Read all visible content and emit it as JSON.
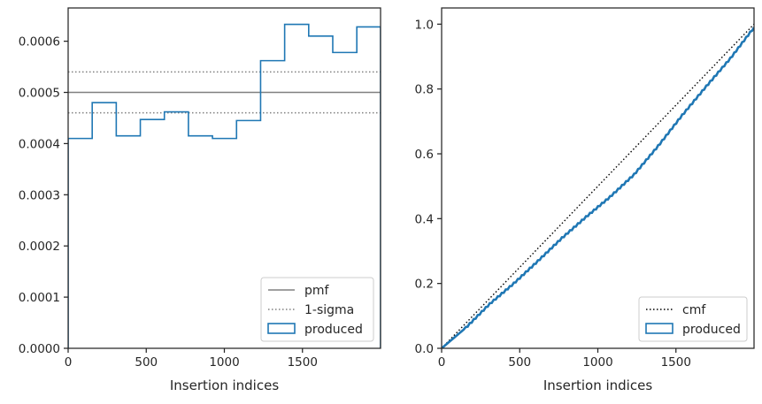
{
  "colors": {
    "produced": "#1f77b4",
    "pmf": "#808080",
    "sigma": "#808080",
    "cmf": "#000000",
    "axis": "#262626",
    "text": "#262626",
    "legend_border": "#cccccc"
  },
  "chart_data": [
    {
      "type": "step",
      "title": "",
      "xlabel": "Insertion indices",
      "ylabel": "",
      "xlim": [
        0,
        2000
      ],
      "ylim": [
        0,
        0.000665
      ],
      "xticks": [
        0,
        500,
        1000,
        1500
      ],
      "xtick_labels": [
        "0",
        "500",
        "1000",
        "1500"
      ],
      "yticks": [
        0,
        0.0001,
        0.0002,
        0.0003,
        0.0004,
        0.0005,
        0.0006
      ],
      "ytick_labels": [
        "0.0000",
        "0.0001",
        "0.0002",
        "0.0003",
        "0.0004",
        "0.0005",
        "0.0006"
      ],
      "grid": false,
      "legend_position": "lower-right",
      "legend": [
        "pmf",
        "1-sigma",
        "produced"
      ],
      "pmf": 0.0005,
      "sigma_band": [
        0.00046,
        0.00054
      ],
      "series": [
        {
          "name": "produced",
          "bin_edges": [
            0,
            154,
            308,
            462,
            616,
            770,
            924,
            1078,
            1232,
            1386,
            1540,
            1694,
            1848,
            2000
          ],
          "values": [
            0.00041,
            0.00048,
            0.000415,
            0.000447,
            0.000462,
            0.000415,
            0.00041,
            0.000445,
            0.000562,
            0.000633,
            0.00061,
            0.000578,
            0.000628
          ]
        }
      ]
    },
    {
      "type": "line",
      "title": "",
      "xlabel": "Insertion indices",
      "ylabel": "",
      "xlim": [
        0,
        2000
      ],
      "ylim": [
        0,
        1.05
      ],
      "xticks": [
        0,
        500,
        1000,
        1500
      ],
      "xtick_labels": [
        "0",
        "500",
        "1000",
        "1500"
      ],
      "yticks": [
        0,
        0.2,
        0.4,
        0.6,
        0.8,
        1.0
      ],
      "ytick_labels": [
        "0.0",
        "0.2",
        "0.4",
        "0.6",
        "0.8",
        "1.0"
      ],
      "grid": false,
      "legend_position": "lower-right",
      "legend": [
        "cmf",
        "produced"
      ],
      "series": [
        {
          "name": "cmf",
          "x": [
            0,
            2000
          ],
          "y": [
            0,
            1.0
          ]
        },
        {
          "name": "produced",
          "x": [
            0,
            154,
            308,
            462,
            616,
            770,
            924,
            1078,
            1232,
            1386,
            1540,
            1694,
            1848,
            2000
          ],
          "y": [
            0,
            0.063,
            0.137,
            0.2,
            0.269,
            0.34,
            0.405,
            0.467,
            0.536,
            0.624,
            0.719,
            0.808,
            0.894,
            0.99
          ]
        }
      ]
    }
  ]
}
